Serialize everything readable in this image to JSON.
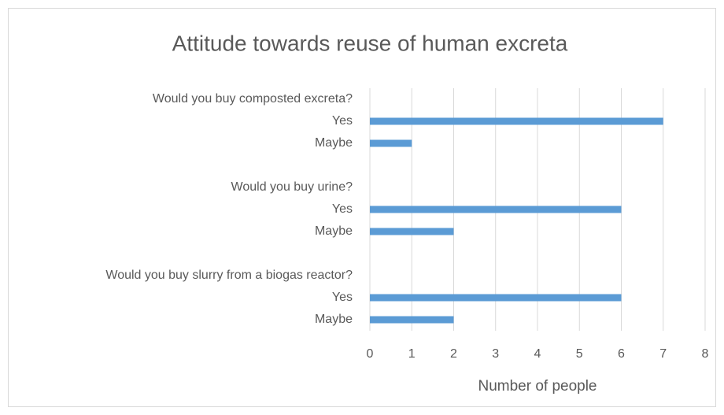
{
  "chart_data": {
    "type": "bar",
    "orientation": "horizontal",
    "title": "Attitude towards reuse of human excreta",
    "x_label": "Number of people",
    "groups": [
      {
        "label": "Would you buy composted excreta?",
        "categories": [
          "Yes",
          "Maybe"
        ],
        "values": [
          7,
          1
        ]
      },
      {
        "label": "Would you buy urine?",
        "categories": [
          "Yes",
          "Maybe"
        ],
        "values": [
          6,
          2
        ]
      },
      {
        "label": "Would you buy slurry from a biogas reactor?",
        "categories": [
          "Yes",
          "Maybe"
        ],
        "values": [
          6,
          2
        ]
      }
    ],
    "color": "#5b9bd5",
    "xlim": [
      0,
      8
    ],
    "xticks": [
      0,
      1,
      2,
      3,
      4,
      5,
      6,
      7,
      8
    ],
    "grid": true
  }
}
